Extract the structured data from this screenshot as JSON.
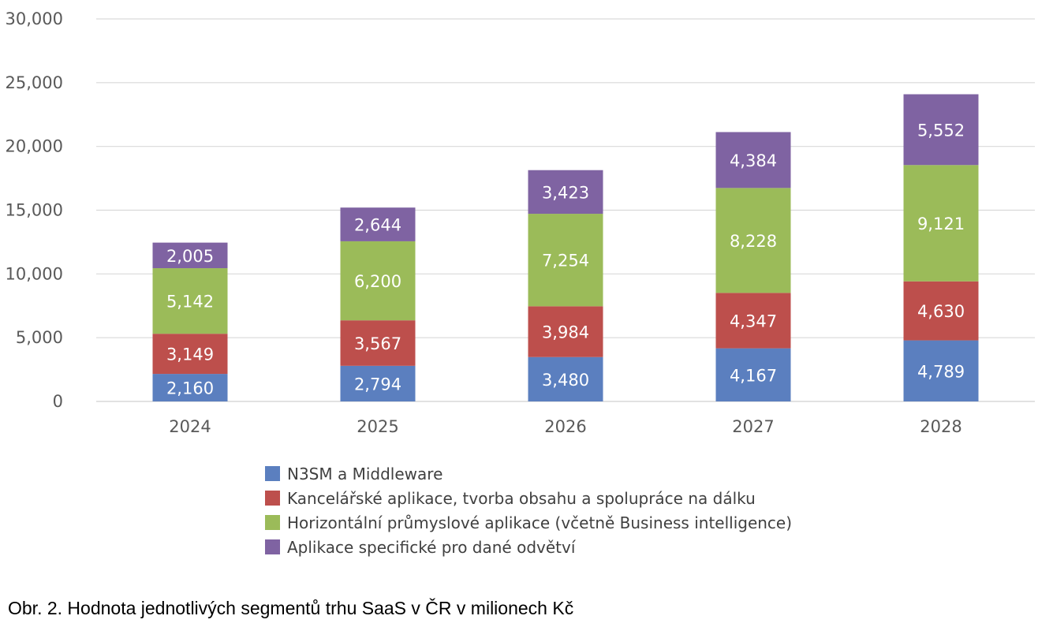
{
  "chart_data": {
    "type": "bar",
    "stacked": true,
    "categories": [
      "2024",
      "2025",
      "2026",
      "2027",
      "2028"
    ],
    "ylim": [
      0,
      30000
    ],
    "yticks": [
      "0",
      "5,000",
      "10,000",
      "15,000",
      "20,000",
      "25,000",
      "30,000"
    ],
    "ytick_values": [
      0,
      5000,
      10000,
      15000,
      20000,
      25000,
      30000
    ],
    "grid": true,
    "legend_placement": "bottom",
    "series": [
      {
        "name": "N3SM a Middleware",
        "color": "#5b7fbf",
        "values": [
          2160,
          2794,
          3480,
          4167,
          4789
        ],
        "labels": [
          "2,160",
          "2,794",
          "3,480",
          "4,167",
          "4,789"
        ]
      },
      {
        "name": "Kancelářské aplikace, tvorba obsahu a spolupráce na dálku",
        "color": "#bd4f4c",
        "values": [
          3149,
          3567,
          3984,
          4347,
          4630
        ],
        "labels": [
          "3,149",
          "3,567",
          "3,984",
          "4,347",
          "4,630"
        ]
      },
      {
        "name": "Horizontální průmyslové aplikace (včetně Business intelligence)",
        "color": "#9bbb59",
        "values": [
          5142,
          6200,
          7254,
          8228,
          9121
        ],
        "labels": [
          "5,142",
          "6,200",
          "7,254",
          "8,228",
          "9,121"
        ]
      },
      {
        "name": "Aplikace specifické pro dané odvětví",
        "color": "#7f63a2",
        "values": [
          2005,
          2644,
          3423,
          4384,
          5552
        ],
        "labels": [
          "2,005",
          "2,644",
          "3,423",
          "4,384",
          "5,552"
        ]
      }
    ]
  },
  "caption": "Obr. 2. Hodnota jednotlivých segmentů trhu SaaS v ČR v milionech Kč"
}
